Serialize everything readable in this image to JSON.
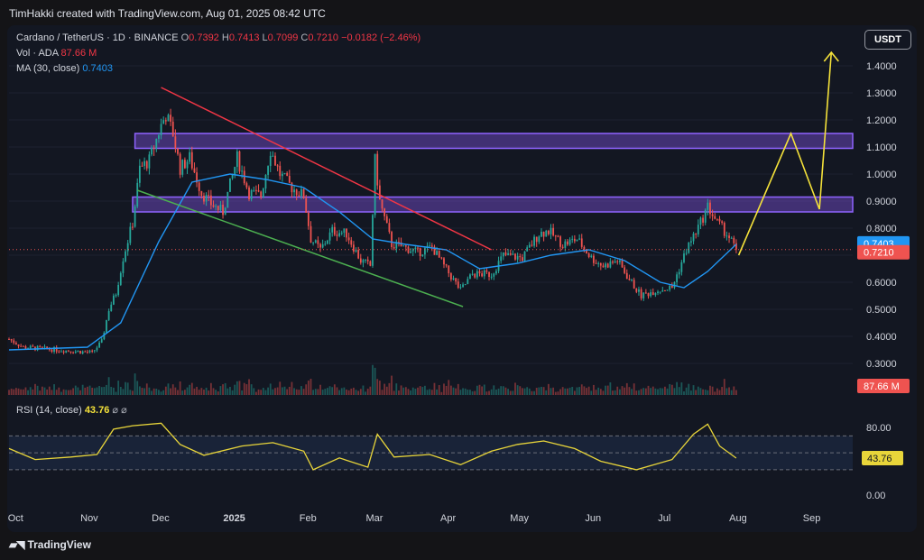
{
  "header": {
    "credit": "TimHakki created with TradingView.com, Aug 01, 2025 08:42 UTC"
  },
  "legend": {
    "symbol": "Cardano / TetherUS · 1D · BINANCE",
    "open_label": "O",
    "open": "0.7392",
    "high_label": "H",
    "high": "0.7413",
    "low_label": "L",
    "low": "0.7099",
    "close_label": "C",
    "close": "0.7210",
    "change": "−0.0182 (−2.46%)",
    "vol_label": "Vol · ADA",
    "vol_value": "87.66 M",
    "ma_label": "MA (30, close)",
    "ma_value": "0.7403",
    "rsi_label": "RSI (14, close)",
    "rsi_value": "43.76",
    "rsi_icons": "⌀ ⌀"
  },
  "currency_button": "USDT",
  "badges": {
    "ma": "0.7403",
    "price": "0.7210",
    "volume": "87.66 M",
    "rsi": "43.76"
  },
  "footer": {
    "brand": "TradingView",
    "brand_icon": "tradingview-logo-icon"
  },
  "colors": {
    "background": "#131722",
    "up": "#26a69a",
    "down": "#ef5350",
    "ma": "#2196f3",
    "rsi": "#e8d53a",
    "resistance_line": "#f23645",
    "support_line": "#4caf50",
    "zone": "#7b4fd6",
    "projection": "#f5e23a"
  },
  "chart_data": {
    "type": "candlestick",
    "price_axis": {
      "ticks": [
        "1.4000",
        "1.3000",
        "1.2000",
        "1.1000",
        "1.0000",
        "0.9000",
        "0.8000",
        "0.7000",
        "0.6000",
        "0.5000",
        "0.4000",
        "0.3000"
      ],
      "range": [
        0.26,
        1.47
      ]
    },
    "time_axis": {
      "ticks": [
        "Oct",
        "Nov",
        "Dec",
        "2025",
        "Feb",
        "Mar",
        "Apr",
        "May",
        "Jun",
        "Jul",
        "Aug",
        "Sep"
      ],
      "bold_tick": "2025",
      "start": "2024-09-29",
      "end": "2025-09-19"
    },
    "price_path": [
      [
        "2024-09-29",
        0.39
      ],
      [
        "2024-10-05",
        0.36
      ],
      [
        "2024-10-20",
        0.35
      ],
      [
        "2024-11-03",
        0.34
      ],
      [
        "2024-11-07",
        0.38
      ],
      [
        "2024-11-10",
        0.5
      ],
      [
        "2024-11-13",
        0.56
      ],
      [
        "2024-11-16",
        0.69
      ],
      [
        "2024-11-20",
        0.82
      ],
      [
        "2024-11-23",
        1.02
      ],
      [
        "2024-11-27",
        1.05
      ],
      [
        "2024-12-02",
        1.18
      ],
      [
        "2024-12-04",
        1.22
      ],
      [
        "2024-12-07",
        1.15
      ],
      [
        "2024-12-10",
        1.02
      ],
      [
        "2024-12-14",
        1.06
      ],
      [
        "2024-12-19",
        0.93
      ],
      [
        "2024-12-23",
        0.89
      ],
      [
        "2024-12-28",
        0.86
      ],
      [
        "2025-01-03",
        1.06
      ],
      [
        "2025-01-08",
        0.93
      ],
      [
        "2025-01-13",
        0.92
      ],
      [
        "2025-01-17",
        1.09
      ],
      [
        "2025-01-21",
        1.0
      ],
      [
        "2025-01-26",
        0.95
      ],
      [
        "2025-01-31",
        0.92
      ],
      [
        "2025-02-03",
        0.76
      ],
      [
        "2025-02-07",
        0.72
      ],
      [
        "2025-02-12",
        0.79
      ],
      [
        "2025-02-18",
        0.78
      ],
      [
        "2025-02-24",
        0.68
      ],
      [
        "2025-02-28",
        0.66
      ],
      [
        "2025-03-02",
        1.05
      ],
      [
        "2025-03-04",
        0.9
      ],
      [
        "2025-03-09",
        0.74
      ],
      [
        "2025-03-14",
        0.73
      ],
      [
        "2025-03-20",
        0.71
      ],
      [
        "2025-03-26",
        0.73
      ],
      [
        "2025-03-31",
        0.66
      ],
      [
        "2025-04-07",
        0.57
      ],
      [
        "2025-04-12",
        0.63
      ],
      [
        "2025-04-20",
        0.63
      ],
      [
        "2025-04-25",
        0.7
      ],
      [
        "2025-05-03",
        0.69
      ],
      [
        "2025-05-10",
        0.78
      ],
      [
        "2025-05-14",
        0.79
      ],
      [
        "2025-05-20",
        0.74
      ],
      [
        "2025-05-26",
        0.76
      ],
      [
        "2025-06-01",
        0.69
      ],
      [
        "2025-06-06",
        0.66
      ],
      [
        "2025-06-12",
        0.68
      ],
      [
        "2025-06-17",
        0.61
      ],
      [
        "2025-06-22",
        0.55
      ],
      [
        "2025-06-28",
        0.57
      ],
      [
        "2025-07-05",
        0.58
      ],
      [
        "2025-07-11",
        0.72
      ],
      [
        "2025-07-17",
        0.82
      ],
      [
        "2025-07-20",
        0.88
      ],
      [
        "2025-07-24",
        0.82
      ],
      [
        "2025-07-28",
        0.78
      ],
      [
        "2025-08-01",
        0.721
      ]
    ],
    "ma30": {
      "name": "MA (30, close)",
      "points": [
        [
          "2024-09-29",
          0.35
        ],
        [
          "2024-11-01",
          0.36
        ],
        [
          "2024-11-15",
          0.45
        ],
        [
          "2024-12-01",
          0.75
        ],
        [
          "2024-12-15",
          0.97
        ],
        [
          "2024-12-31",
          1.0
        ],
        [
          "2025-01-15",
          0.98
        ],
        [
          "2025-01-31",
          0.95
        ],
        [
          "2025-02-15",
          0.86
        ],
        [
          "2025-03-01",
          0.76
        ],
        [
          "2025-03-15",
          0.74
        ],
        [
          "2025-04-01",
          0.72
        ],
        [
          "2025-04-15",
          0.65
        ],
        [
          "2025-05-01",
          0.67
        ],
        [
          "2025-05-15",
          0.7
        ],
        [
          "2025-05-31",
          0.72
        ],
        [
          "2025-06-15",
          0.68
        ],
        [
          "2025-06-30",
          0.6
        ],
        [
          "2025-07-10",
          0.58
        ],
        [
          "2025-07-20",
          0.64
        ],
        [
          "2025-08-01",
          0.7403
        ]
      ]
    },
    "volume_axis_max": 100,
    "rsi": {
      "name": "RSI (14, close)",
      "ticks": [
        "80.00",
        "60.00",
        "40.00",
        "20.00",
        "0.00"
      ],
      "visible_ticks": [
        "80.00",
        "0.00"
      ],
      "overbought": 70,
      "oversold": 30,
      "points": [
        [
          "2024-09-29",
          55
        ],
        [
          "2024-10-10",
          42
        ],
        [
          "2024-10-25",
          45
        ],
        [
          "2024-11-05",
          48
        ],
        [
          "2024-11-12",
          78
        ],
        [
          "2024-11-20",
          82
        ],
        [
          "2024-12-02",
          85
        ],
        [
          "2024-12-10",
          60
        ],
        [
          "2024-12-20",
          47
        ],
        [
          "2025-01-05",
          58
        ],
        [
          "2025-01-18",
          62
        ],
        [
          "2025-01-31",
          52
        ],
        [
          "2025-02-04",
          30
        ],
        [
          "2025-02-15",
          44
        ],
        [
          "2025-02-27",
          33
        ],
        [
          "2025-03-03",
          72
        ],
        [
          "2025-03-10",
          45
        ],
        [
          "2025-03-25",
          48
        ],
        [
          "2025-04-07",
          36
        ],
        [
          "2025-04-20",
          52
        ],
        [
          "2025-05-01",
          60
        ],
        [
          "2025-05-12",
          64
        ],
        [
          "2025-05-25",
          55
        ],
        [
          "2025-06-05",
          40
        ],
        [
          "2025-06-20",
          30
        ],
        [
          "2025-07-05",
          42
        ],
        [
          "2025-07-14",
          72
        ],
        [
          "2025-07-20",
          84
        ],
        [
          "2025-07-25",
          58
        ],
        [
          "2025-08-01",
          43.76
        ]
      ]
    },
    "annotations": [
      {
        "type": "trendline",
        "name": "descending-resistance",
        "from": [
          "2024-12-02",
          1.32
        ],
        "to": [
          "2025-04-20",
          0.72
        ]
      },
      {
        "type": "trendline",
        "name": "descending-support",
        "from": [
          "2024-11-22",
          0.94
        ],
        "to": [
          "2025-04-08",
          0.51
        ]
      },
      {
        "type": "zone",
        "name": "upper-resistance-zone",
        "from": "2024-11-21",
        "to": "2025-09-19",
        "low": 1.095,
        "high": 1.15
      },
      {
        "type": "zone",
        "name": "lower-resistance-zone",
        "from": "2024-11-20",
        "to": "2025-09-19",
        "low": 0.86,
        "high": 0.915
      },
      {
        "type": "projection",
        "name": "bullish-projection",
        "points": [
          [
            "2025-08-02",
            0.7
          ],
          [
            "2025-08-24",
            1.15
          ],
          [
            "2025-09-05",
            0.87
          ],
          [
            "2025-09-10",
            1.45
          ]
        ]
      }
    ]
  }
}
